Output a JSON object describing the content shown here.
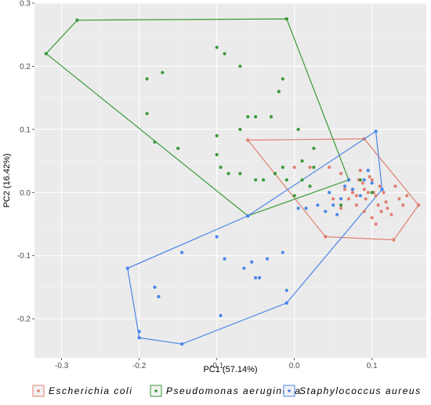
{
  "chart_data": {
    "type": "scatter",
    "xlabel": "PC1 (57.14%)",
    "ylabel": "PC2 (16.42%)",
    "xlim": [
      -0.335,
      0.17
    ],
    "ylim": [
      -0.262,
      0.3
    ],
    "x_ticks": [
      -0.3,
      -0.2,
      -0.1,
      0.0,
      0.1
    ],
    "x_tick_labels": [
      "-0.3",
      "-0.2",
      "-0.1",
      "0.0",
      "0.1"
    ],
    "y_ticks": [
      -0.2,
      -0.1,
      0.0,
      0.1,
      0.2,
      0.3
    ],
    "y_tick_labels": [
      "-0.2",
      "-0.1",
      "0.0",
      "0.1",
      "0.2",
      "0.3"
    ],
    "grid": true,
    "background": "#ebebeb",
    "legend_position": "bottom",
    "series": [
      {
        "name": "Escherichia coli",
        "color": "#e07f70",
        "points": [
          [
            0.0,
            0.04
          ],
          [
            0.02,
            0.04
          ],
          [
            0.045,
            0.04
          ],
          [
            0.06,
            0.03
          ],
          [
            0.065,
            0.005
          ],
          [
            0.07,
            -0.01
          ],
          [
            0.075,
            0.0
          ],
          [
            0.08,
            -0.005
          ],
          [
            0.083,
            0.02
          ],
          [
            0.085,
            0.035
          ],
          [
            0.088,
            0.015
          ],
          [
            0.09,
            0.005
          ],
          [
            0.092,
            -0.01
          ],
          [
            0.095,
            0.0
          ],
          [
            0.097,
            0.025
          ],
          [
            0.1,
            0.02
          ],
          [
            0.102,
            0.0
          ],
          [
            0.105,
            -0.005
          ],
          [
            0.108,
            -0.02
          ],
          [
            0.11,
            0.01
          ],
          [
            0.112,
            -0.03
          ],
          [
            0.115,
            0.0
          ],
          [
            0.118,
            -0.015
          ],
          [
            0.12,
            -0.025
          ],
          [
            0.125,
            -0.035
          ],
          [
            0.13,
            0.01
          ],
          [
            0.135,
            -0.01
          ],
          [
            0.14,
            -0.02
          ],
          [
            0.145,
            -0.005
          ],
          [
            0.1,
            -0.04
          ],
          [
            0.105,
            -0.05
          ],
          [
            0.09,
            -0.03
          ],
          [
            0.08,
            -0.02
          ],
          [
            0.06,
            -0.025
          ],
          [
            0.05,
            -0.01
          ]
        ],
        "hull": [
          [
            -0.06,
            0.083
          ],
          [
            0.09,
            0.085
          ],
          [
            0.16,
            -0.02
          ],
          [
            0.128,
            -0.075
          ],
          [
            0.04,
            -0.07
          ]
        ]
      },
      {
        "name": "Pseudomonas aeruginosa",
        "color": "#3a9a3a",
        "points": [
          [
            -0.19,
            0.18
          ],
          [
            -0.17,
            0.19
          ],
          [
            -0.19,
            0.125
          ],
          [
            -0.18,
            0.08
          ],
          [
            -0.15,
            0.07
          ],
          [
            -0.1,
            0.23
          ],
          [
            -0.09,
            0.22
          ],
          [
            -0.07,
            0.2
          ],
          [
            -0.1,
            0.09
          ],
          [
            -0.1,
            0.06
          ],
          [
            -0.095,
            0.04
          ],
          [
            -0.085,
            0.03
          ],
          [
            -0.07,
            0.03
          ],
          [
            -0.07,
            0.1
          ],
          [
            -0.05,
            0.12
          ],
          [
            -0.03,
            0.12
          ],
          [
            -0.06,
            0.12
          ],
          [
            -0.05,
            0.02
          ],
          [
            -0.04,
            0.02
          ],
          [
            -0.025,
            0.03
          ],
          [
            -0.015,
            0.04
          ],
          [
            -0.01,
            0.02
          ],
          [
            0.005,
            0.1
          ],
          [
            0.01,
            0.05
          ],
          [
            0.025,
            0.07
          ],
          [
            0.025,
            0.04
          ],
          [
            0.01,
            0.02
          ],
          [
            -0.02,
            0.16
          ],
          [
            -0.015,
            0.18
          ],
          [
            0.02,
            0.01
          ],
          [
            0.06,
            -0.02
          ],
          [
            0.0,
            -0.005
          ],
          [
            0.07,
            0.02
          ],
          [
            0.085,
            0.02
          ],
          [
            0.1,
            0.0
          ]
        ],
        "hull": [
          [
            -0.32,
            0.22
          ],
          [
            -0.28,
            0.273
          ],
          [
            -0.01,
            0.275
          ],
          [
            0.07,
            0.02
          ],
          [
            -0.06,
            -0.037
          ]
        ]
      },
      {
        "name": "Staphylococcus aureus",
        "color": "#4a86e8",
        "points": [
          [
            -0.2,
            -0.22
          ],
          [
            -0.18,
            -0.15
          ],
          [
            -0.175,
            -0.165
          ],
          [
            -0.145,
            -0.095
          ],
          [
            -0.1,
            -0.07
          ],
          [
            -0.095,
            -0.195
          ],
          [
            -0.09,
            -0.105
          ],
          [
            -0.065,
            -0.12
          ],
          [
            -0.055,
            -0.11
          ],
          [
            -0.045,
            -0.135
          ],
          [
            -0.035,
            -0.105
          ],
          [
            -0.05,
            -0.135
          ],
          [
            -0.015,
            -0.095
          ],
          [
            -0.01,
            -0.155
          ],
          [
            0.005,
            -0.025
          ],
          [
            0.015,
            -0.025
          ],
          [
            0.03,
            -0.02
          ],
          [
            0.04,
            -0.03
          ],
          [
            0.05,
            -0.02
          ],
          [
            0.055,
            -0.035
          ],
          [
            0.06,
            -0.01
          ],
          [
            0.065,
            0.01
          ],
          [
            0.07,
            0.02
          ],
          [
            0.075,
            0.005
          ],
          [
            0.085,
            -0.005
          ],
          [
            0.09,
            0.02
          ],
          [
            0.095,
            0.035
          ],
          [
            0.1,
            0.015
          ],
          [
            0.045,
            0.0
          ]
        ],
        "hull": [
          [
            -0.215,
            -0.12
          ],
          [
            -0.2,
            -0.23
          ],
          [
            -0.145,
            -0.24
          ],
          [
            -0.01,
            -0.175
          ],
          [
            0.113,
            0.005
          ],
          [
            0.105,
            0.097
          ],
          [
            -0.06,
            -0.037
          ]
        ]
      }
    ]
  }
}
